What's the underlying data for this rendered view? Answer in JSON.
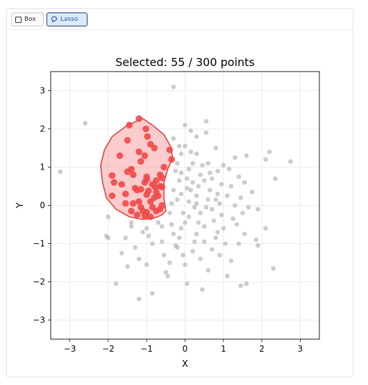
{
  "toolbar": {
    "box_label": "Box",
    "lasso_label": "Lasso",
    "active_tool": "lasso"
  },
  "chart_data": {
    "type": "scatter",
    "title": "Selected: 55 / 300 points",
    "xlabel": "X",
    "ylabel": "Y",
    "xlim": [
      -3.5,
      3.5
    ],
    "ylim": [
      -3.5,
      3.5
    ],
    "xticks": [
      "−3",
      "−2",
      "−1",
      "0",
      "1",
      "2",
      "3"
    ],
    "yticks": [
      "−3",
      "−2",
      "−1",
      "0",
      "1",
      "2",
      "3"
    ],
    "grid": true,
    "colors": {
      "unselected": "#aaaaaa",
      "selected": "#f04848",
      "lasso_fill": "#f7a3a3",
      "lasso_stroke": "#e04040"
    },
    "selected_count": 55,
    "total_count": 300,
    "lasso_polygon": [
      [
        -1.1,
        2.27
      ],
      [
        -0.85,
        2.1
      ],
      [
        -0.55,
        1.85
      ],
      [
        -0.38,
        1.55
      ],
      [
        -0.32,
        1.25
      ],
      [
        -0.45,
        0.95
      ],
      [
        -0.55,
        0.6
      ],
      [
        -0.55,
        0.2
      ],
      [
        -0.5,
        -0.15
      ],
      [
        -0.6,
        -0.25
      ],
      [
        -0.8,
        -0.33
      ],
      [
        -1.1,
        -0.37
      ],
      [
        -1.45,
        -0.3
      ],
      [
        -1.8,
        -0.1
      ],
      [
        -2.05,
        0.2
      ],
      [
        -2.15,
        0.6
      ],
      [
        -2.2,
        1.05
      ],
      [
        -2.1,
        1.45
      ],
      [
        -1.9,
        1.8
      ],
      [
        -1.5,
        2.1
      ]
    ],
    "selected_points": [
      [
        -1.2,
        2.27
      ],
      [
        -1.45,
        2.1
      ],
      [
        -1.02,
        2.0
      ],
      [
        -0.98,
        1.8
      ],
      [
        -1.5,
        1.7
      ],
      [
        -0.9,
        1.6
      ],
      [
        -0.8,
        1.5
      ],
      [
        -1.2,
        1.4
      ],
      [
        -0.4,
        1.45
      ],
      [
        -1.7,
        1.3
      ],
      [
        -1.05,
        1.3
      ],
      [
        -0.35,
        1.2
      ],
      [
        -1.15,
        1.15
      ],
      [
        -0.55,
        1.0
      ],
      [
        -1.4,
        0.95
      ],
      [
        -1.5,
        0.88
      ],
      [
        -1.35,
        0.8
      ],
      [
        -0.65,
        0.8
      ],
      [
        -1.0,
        0.75
      ],
      [
        -1.9,
        0.78
      ],
      [
        -1.0,
        0.68
      ],
      [
        -0.75,
        0.65
      ],
      [
        -0.6,
        0.72
      ],
      [
        -1.05,
        0.6
      ],
      [
        -1.85,
        0.6
      ],
      [
        -0.85,
        0.55
      ],
      [
        -0.65,
        0.5
      ],
      [
        -1.65,
        0.55
      ],
      [
        -0.78,
        0.48
      ],
      [
        -1.3,
        0.45
      ],
      [
        -1.15,
        0.42
      ],
      [
        -0.6,
        0.48
      ],
      [
        -0.95,
        0.38
      ],
      [
        -1.25,
        0.4
      ],
      [
        -0.75,
        0.35
      ],
      [
        -1.9,
        0.25
      ],
      [
        -1.55,
        0.3
      ],
      [
        -1.0,
        0.28
      ],
      [
        -0.7,
        0.25
      ],
      [
        -0.9,
        0.1
      ],
      [
        -1.2,
        0.1
      ],
      [
        -1.35,
        0.05
      ],
      [
        -0.85,
        -0.05
      ],
      [
        -0.6,
        0.0
      ],
      [
        -1.15,
        -0.05
      ],
      [
        -1.4,
        -0.15
      ],
      [
        -1.1,
        -0.15
      ],
      [
        -0.75,
        -0.15
      ],
      [
        -1.0,
        -0.18
      ],
      [
        -1.25,
        -0.25
      ],
      [
        -1.05,
        -0.28
      ],
      [
        -0.9,
        -0.3
      ],
      [
        -0.65,
        -0.1
      ],
      [
        -1.55,
        0.05
      ],
      [
        -0.8,
        0.2
      ]
    ],
    "unselected_points": [
      [
        -3.25,
        0.88
      ],
      [
        -2.6,
        2.15
      ],
      [
        -2.0,
        -0.3
      ],
      [
        -2.05,
        -0.8
      ],
      [
        -2.0,
        -0.85
      ],
      [
        -1.65,
        -1.25
      ],
      [
        -1.55,
        -0.85
      ],
      [
        -1.4,
        -0.45
      ],
      [
        -1.4,
        -0.55
      ],
      [
        -1.5,
        -1.6
      ],
      [
        -1.3,
        -1.1
      ],
      [
        -1.2,
        -1.4
      ],
      [
        -1.2,
        -2.45
      ],
      [
        -0.85,
        -2.3
      ],
      [
        -1.1,
        -0.7
      ],
      [
        -1.0,
        -0.6
      ],
      [
        -0.95,
        -0.8
      ],
      [
        -0.85,
        -1.0
      ],
      [
        -1.0,
        -1.55
      ],
      [
        -0.7,
        -0.45
      ],
      [
        -0.6,
        -0.95
      ],
      [
        -0.55,
        -1.3
      ],
      [
        -0.5,
        -1.75
      ],
      [
        -0.45,
        -1.85
      ],
      [
        -0.4,
        -1.5
      ],
      [
        -0.35,
        -0.5
      ],
      [
        -0.3,
        -0.75
      ],
      [
        -0.25,
        -1.05
      ],
      [
        -0.2,
        -1.1
      ],
      [
        -0.15,
        -0.85
      ],
      [
        -0.1,
        -0.6
      ],
      [
        -0.05,
        -1.3
      ],
      [
        0.0,
        -1.55
      ],
      [
        0.05,
        -2.05
      ],
      [
        -0.3,
        3.1
      ],
      [
        -0.3,
        1.75
      ],
      [
        -0.15,
        1.55
      ],
      [
        -0.1,
        1.35
      ],
      [
        -0.2,
        1.1
      ],
      [
        -0.25,
        0.9
      ],
      [
        -0.15,
        0.65
      ],
      [
        -0.3,
        0.4
      ],
      [
        -0.2,
        0.15
      ],
      [
        -0.1,
        0.3
      ],
      [
        -0.35,
        0.05
      ],
      [
        -0.4,
        -0.2
      ],
      [
        0.0,
        1.55
      ],
      [
        0.0,
        2.1
      ],
      [
        0.15,
        1.95
      ],
      [
        0.3,
        1.8
      ],
      [
        0.3,
        1.35
      ],
      [
        0.2,
        1.1
      ],
      [
        0.1,
        0.95
      ],
      [
        0.05,
        0.7
      ],
      [
        0.2,
        0.6
      ],
      [
        0.35,
        0.5
      ],
      [
        0.15,
        0.4
      ],
      [
        0.3,
        0.25
      ],
      [
        0.1,
        0.1
      ],
      [
        0.25,
        -0.05
      ],
      [
        0.4,
        -0.2
      ],
      [
        0.1,
        -0.3
      ],
      [
        0.35,
        -0.45
      ],
      [
        0.5,
        -0.55
      ],
      [
        0.3,
        -0.75
      ],
      [
        0.5,
        -0.95
      ],
      [
        0.2,
        -1.2
      ],
      [
        0.4,
        -1.4
      ],
      [
        0.6,
        -1.7
      ],
      [
        0.45,
        -2.2
      ],
      [
        0.55,
        2.2
      ],
      [
        0.55,
        1.9
      ],
      [
        0.8,
        1.5
      ],
      [
        0.6,
        1.1
      ],
      [
        0.85,
        0.9
      ],
      [
        0.7,
        0.7
      ],
      [
        0.5,
        0.65
      ],
      [
        0.65,
        0.4
      ],
      [
        0.85,
        0.3
      ],
      [
        0.6,
        0.15
      ],
      [
        0.9,
        0.05
      ],
      [
        0.7,
        -0.1
      ],
      [
        0.95,
        -0.25
      ],
      [
        0.75,
        -0.4
      ],
      [
        1.0,
        -0.6
      ],
      [
        0.8,
        -0.85
      ],
      [
        1.05,
        -1.0
      ],
      [
        0.9,
        -1.3
      ],
      [
        1.2,
        -1.45
      ],
      [
        1.1,
        -1.85
      ],
      [
        1.3,
        1.25
      ],
      [
        1.15,
        0.95
      ],
      [
        1.4,
        0.75
      ],
      [
        1.2,
        0.5
      ],
      [
        1.45,
        0.2
      ],
      [
        1.3,
        0.0
      ],
      [
        1.5,
        -0.2
      ],
      [
        1.35,
        -0.5
      ],
      [
        1.55,
        -0.75
      ],
      [
        1.4,
        -1.0
      ],
      [
        1.6,
        1.3
      ],
      [
        1.55,
        0.6
      ],
      [
        1.75,
        0.35
      ],
      [
        1.65,
        -0.05
      ],
      [
        1.9,
        -0.1
      ],
      [
        1.85,
        -0.9
      ],
      [
        1.9,
        -1.05
      ],
      [
        2.1,
        1.2
      ],
      [
        2.2,
        1.4
      ],
      [
        2.35,
        0.7
      ],
      [
        2.1,
        -0.6
      ],
      [
        2.3,
        -1.65
      ],
      [
        2.75,
        1.15
      ],
      [
        1.6,
        -2.05
      ],
      [
        1.45,
        -2.1
      ],
      [
        -1.8,
        -2.05
      ],
      [
        -0.6,
        -0.55
      ],
      [
        -0.05,
        -0.2
      ],
      [
        0.15,
        1.4
      ],
      [
        0.45,
        1.05
      ],
      [
        0.55,
        -0.05
      ],
      [
        0.95,
        0.55
      ],
      [
        1.1,
        0.25
      ],
      [
        0.7,
        -1.15
      ],
      [
        0.25,
        -0.95
      ],
      [
        -0.1,
        0.85
      ],
      [
        0.05,
        0.45
      ],
      [
        0.85,
        -0.7
      ],
      [
        1.25,
        -0.35
      ],
      [
        0.3,
        0.05
      ],
      [
        0.65,
        0.85
      ],
      [
        0.0,
        -0.45
      ],
      [
        0.4,
        0.8
      ],
      [
        1.0,
        1.05
      ],
      [
        0.8,
        0.15
      ]
    ]
  }
}
